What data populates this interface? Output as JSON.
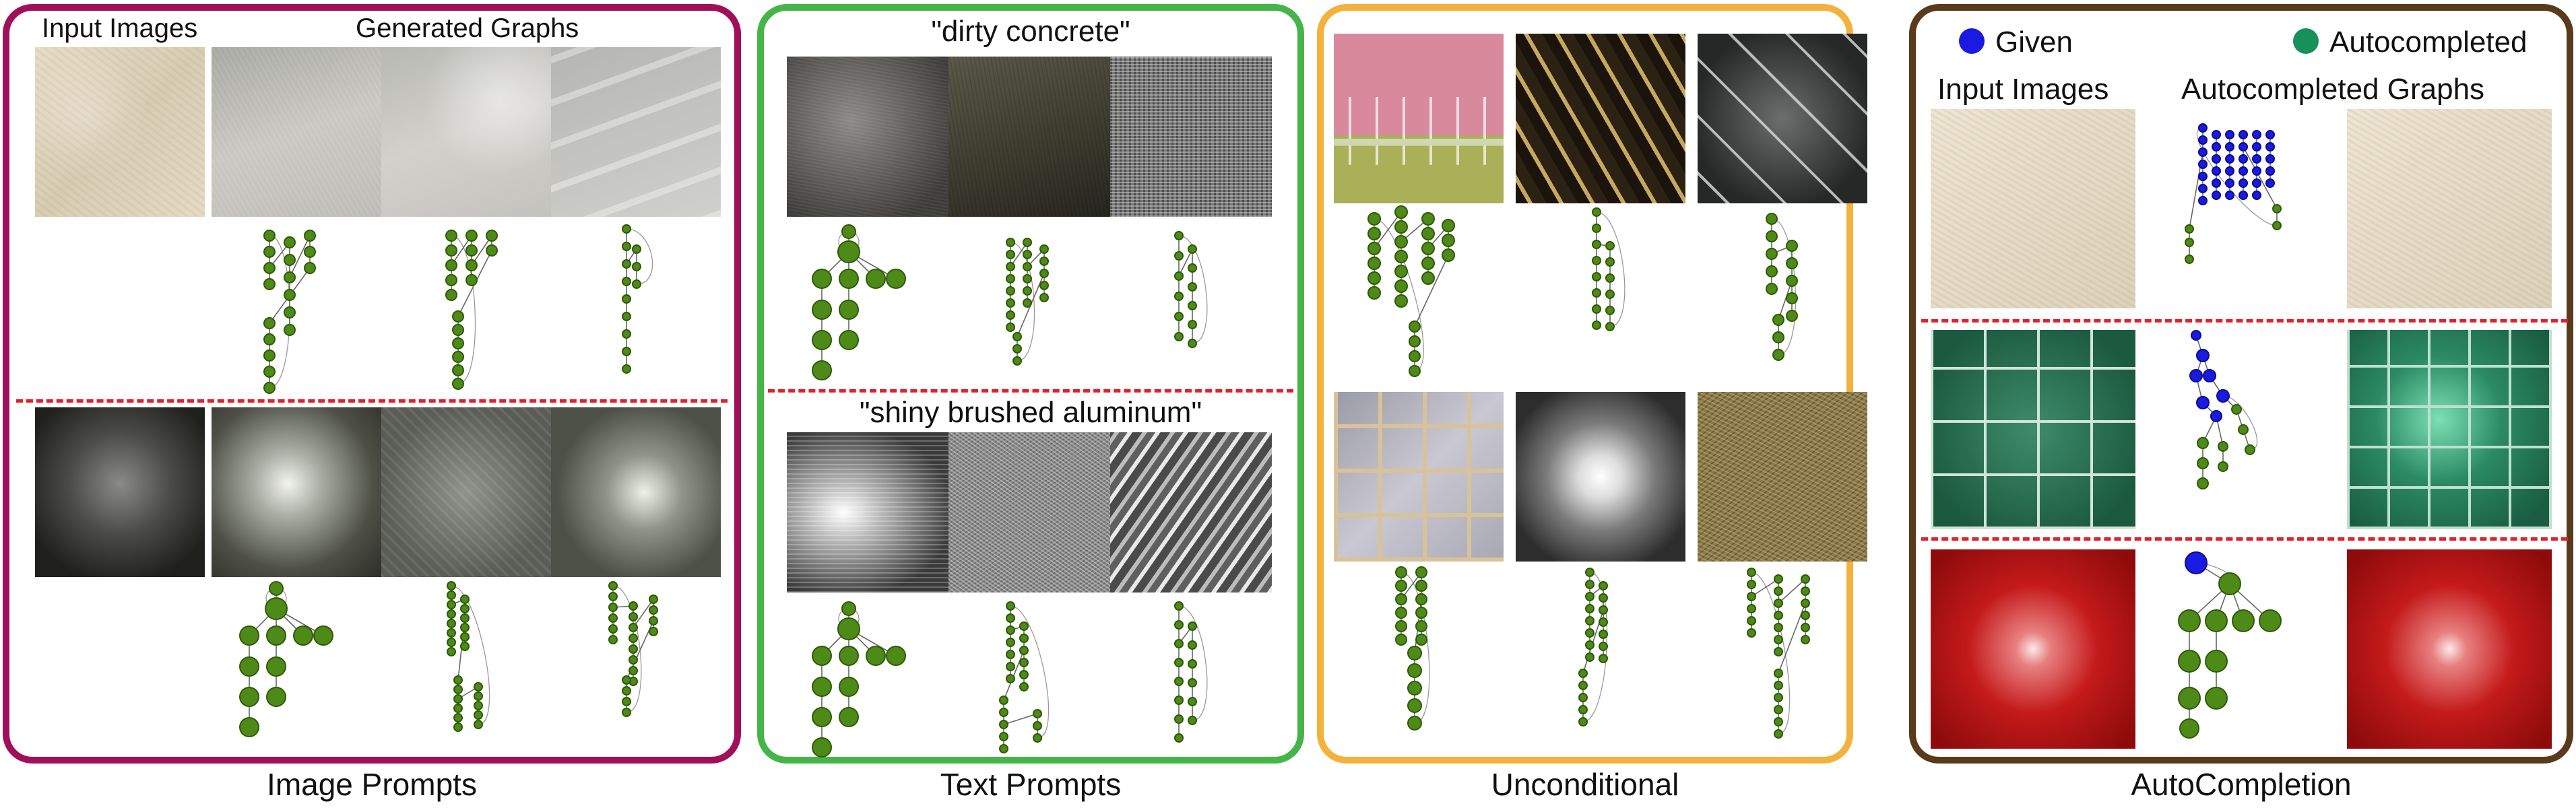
{
  "panels": {
    "image_prompts": {
      "caption": "Image Prompts",
      "header_input": "Input Images",
      "header_generated": "Generated Graphs"
    },
    "text_prompts": {
      "caption": "Text Prompts",
      "prompt1": "\"dirty concrete\"",
      "prompt2": "\"shiny brushed aluminum\""
    },
    "unconditional": {
      "caption": "Unconditional"
    },
    "autocompletion": {
      "caption": "AutoCompletion",
      "legend_given": "Given",
      "legend_autocompleted": "Autocompleted",
      "header_input": "Input Images",
      "header_graphs": "Autocompleted Graphs"
    }
  },
  "colors": {
    "image_prompts_border": "#a0105a",
    "text_prompts_border": "#45b549",
    "unconditional_border": "#f3b23c",
    "autocompletion_border": "#5a3a1c",
    "given_node": "#1a1ae0",
    "autocompleted_node": "#4e8a17",
    "separator": "#e0212b"
  }
}
